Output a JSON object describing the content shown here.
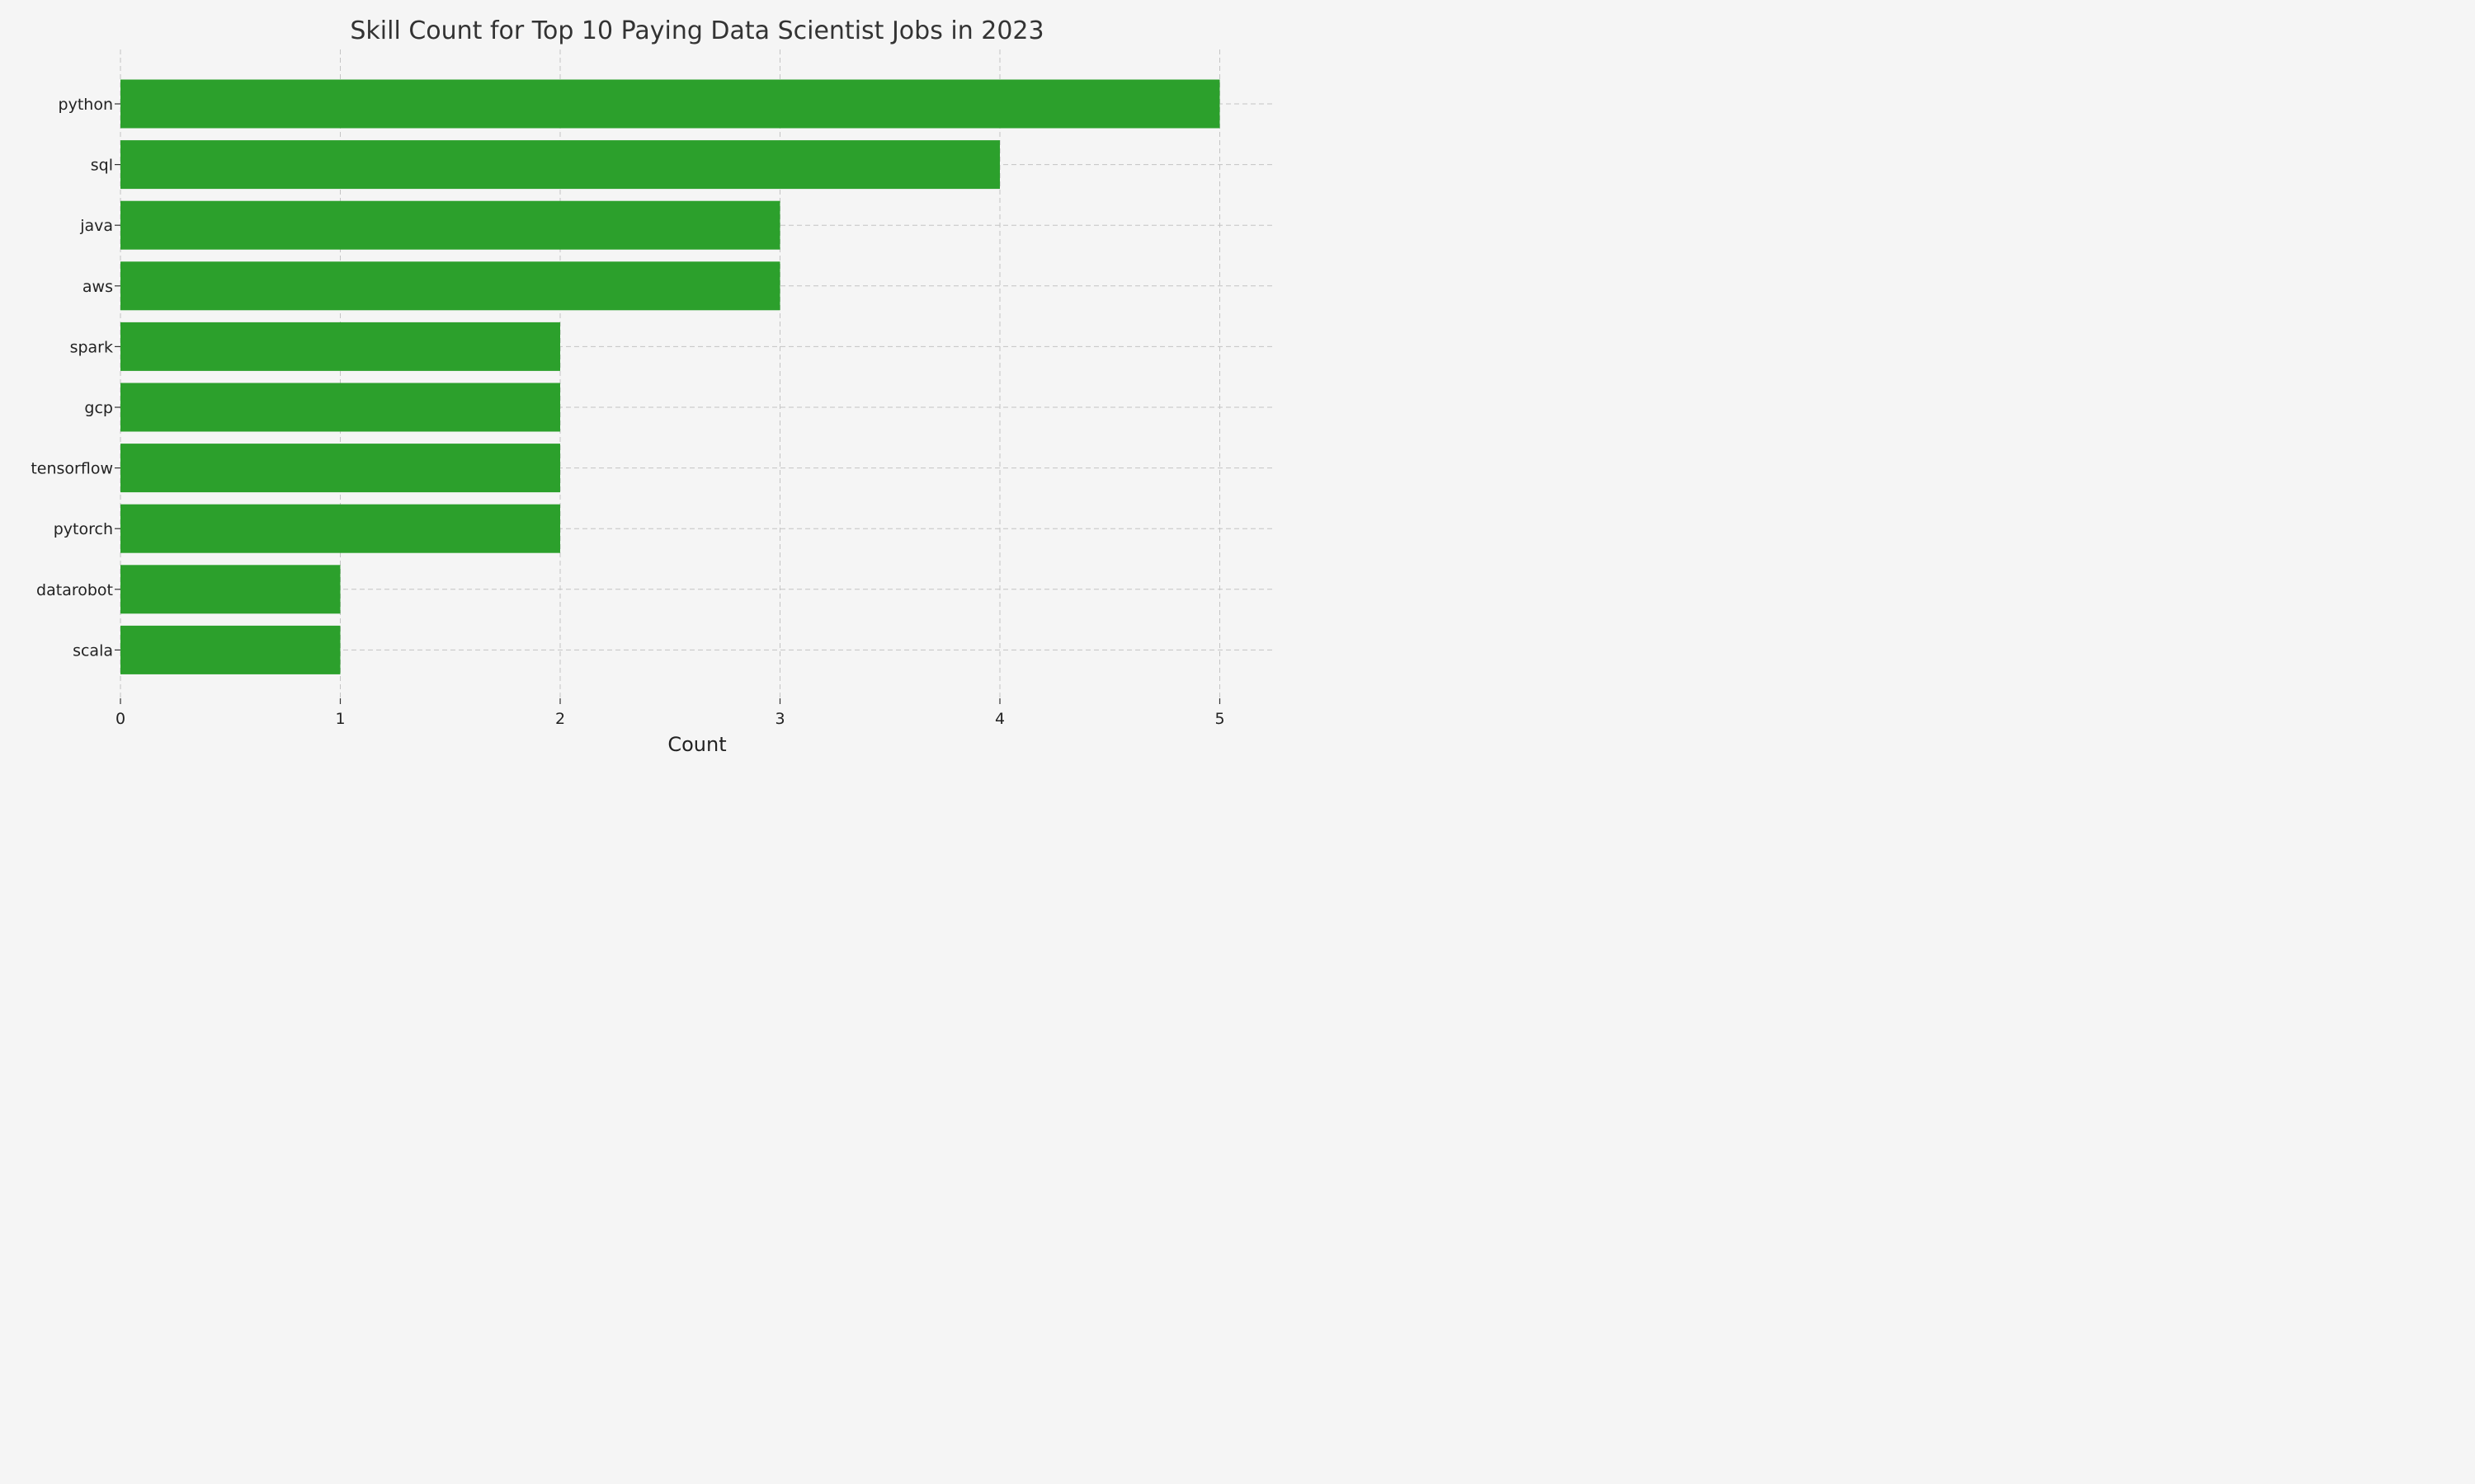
{
  "chart_data": {
    "type": "bar",
    "orientation": "horizontal",
    "title": "Skill Count for Top 10 Paying Data Scientist Jobs in 2023",
    "xlabel": "Count",
    "ylabel": "",
    "categories": [
      "python",
      "sql",
      "java",
      "aws",
      "spark",
      "gcp",
      "tensorflow",
      "pytorch",
      "datarobot",
      "scala"
    ],
    "values": [
      5,
      4,
      3,
      3,
      2,
      2,
      2,
      2,
      1,
      1
    ],
    "xlim": [
      0,
      5.25
    ],
    "xticks": [
      0,
      1,
      2,
      3,
      4,
      5
    ],
    "grid": true,
    "bar_color": "#2ca02c",
    "background_color": "#f5f5f5"
  }
}
